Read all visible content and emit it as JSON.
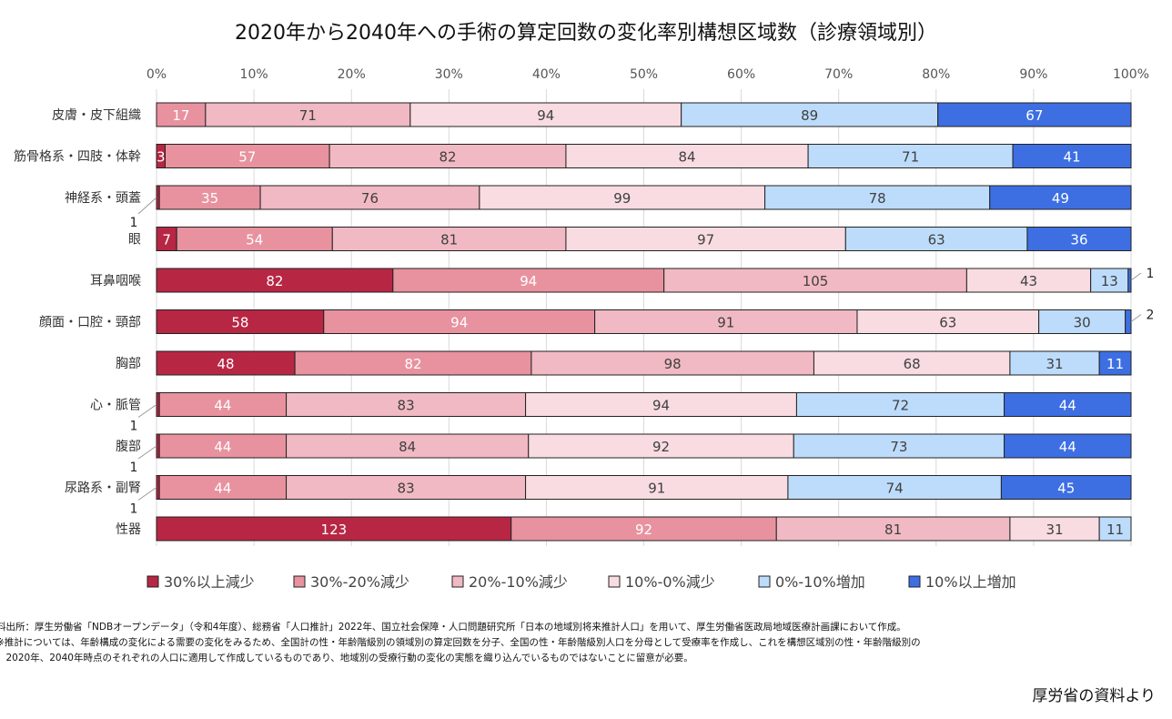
{
  "chart_data": {
    "type": "bar",
    "orientation": "horizontal",
    "stacked": "percent",
    "title": "2020年から2040年への手術の算定回数の変化率別構想区域数（診療領域別）",
    "xlim": [
      0,
      100
    ],
    "x_ticks": [
      "0%",
      "10%",
      "20%",
      "30%",
      "40%",
      "50%",
      "60%",
      "70%",
      "80%",
      "90%",
      "100%"
    ],
    "grid": true,
    "legend_position": "bottom",
    "categories": [
      "皮膚・皮下組織",
      "筋骨格系・四肢・体幹",
      "神経系・頭蓋",
      "眼",
      "耳鼻咽喉",
      "顔面・口腔・頸部",
      "胸部",
      "心・脈管",
      "腹部",
      "尿路系・副腎",
      "性器"
    ],
    "series": [
      {
        "name": "30%以上減少",
        "color": "#b72744",
        "values": [
          0,
          3,
          1,
          7,
          82,
          58,
          48,
          1,
          1,
          1,
          123
        ]
      },
      {
        "name": "30%-20%減少",
        "color": "#e8929f",
        "values": [
          17,
          57,
          35,
          54,
          94,
          94,
          82,
          44,
          44,
          44,
          92
        ]
      },
      {
        "name": "20%-10%減少",
        "color": "#f1b9c3",
        "values": [
          71,
          82,
          76,
          81,
          105,
          91,
          98,
          83,
          84,
          83,
          81
        ]
      },
      {
        "name": "10%-0%減少",
        "color": "#f8dce1",
        "values": [
          94,
          84,
          99,
          97,
          43,
          63,
          68,
          94,
          92,
          91,
          31
        ]
      },
      {
        "name": "0%-10%増加",
        "color": "#bddcfb",
        "values": [
          89,
          71,
          78,
          63,
          13,
          30,
          31,
          72,
          73,
          74,
          11
        ]
      },
      {
        "name": "10%以上増加",
        "color": "#3d6fe3",
        "values": [
          67,
          41,
          49,
          36,
          1,
          2,
          11,
          44,
          44,
          45,
          0
        ]
      }
    ]
  },
  "notes": [
    "料出所：厚生労働省「NDBオープンデータ」（令和4年度）、総務省「人口推計」2022年、国立社会保障・人口問題研究所「日本の地域別将来推計人口」を用いて、厚生労働省医政局地域医療計画課において作成。",
    "※推計については、年齢構成の変化による需要の変化をみるため、全国計の性・年齢階級別の領域別の算定回数を分子、全国の性・年齢階級別人口を分母として受療率を作成し、これを構想区域別の性・年齢階級別の",
    "　2020年、2040年時点のそれぞれの人口に適用して作成しているものであり、地域別の受療行動の変化の実態を織り込んでいるものではないことに留意が必要。"
  ],
  "credit": "厚労省の資料より"
}
